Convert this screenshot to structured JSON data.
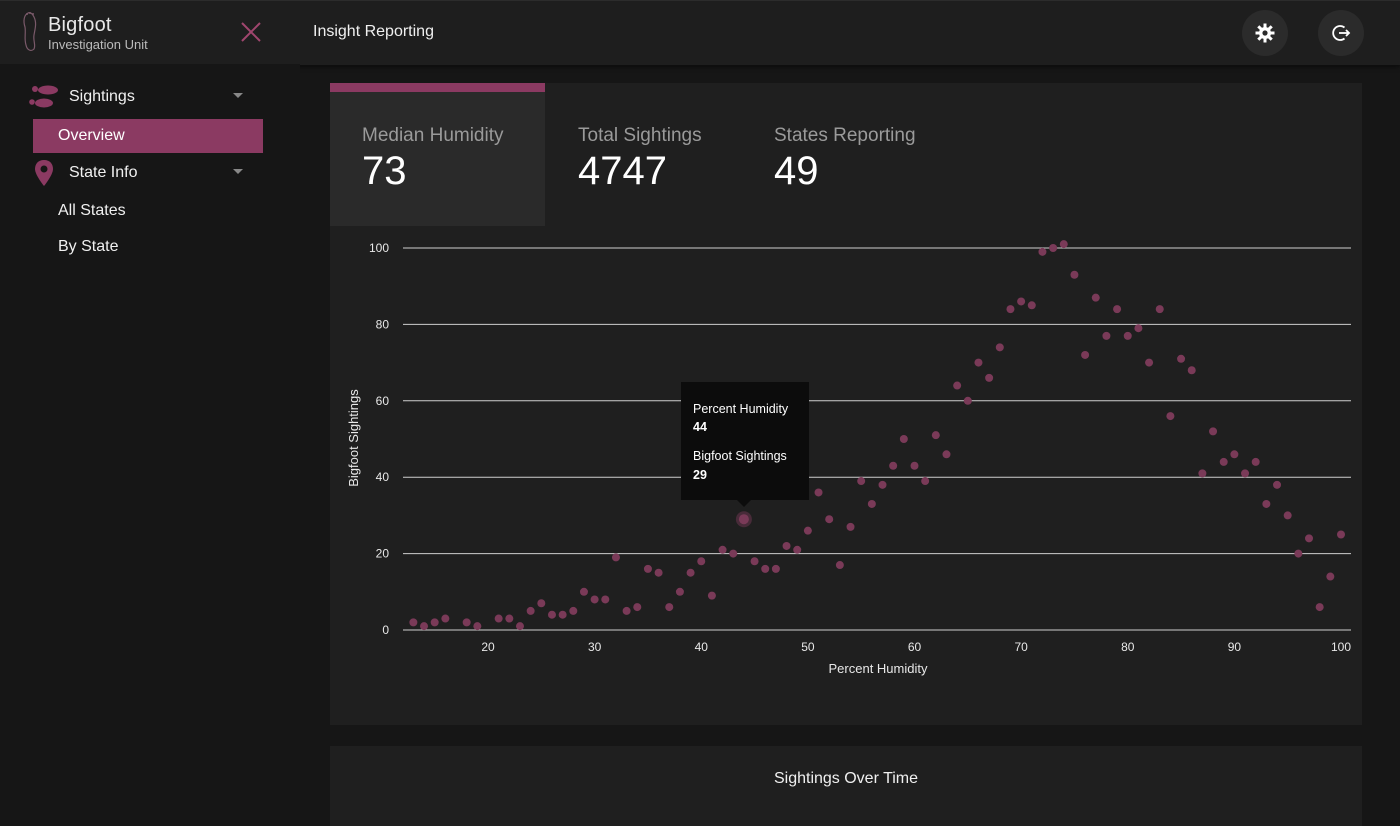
{
  "header": {
    "brand_title": "Bigfoot",
    "brand_subtitle": "Investigation Unit",
    "page_title": "Insight Reporting",
    "icons": [
      "bigfoot-logo-icon",
      "close-icon",
      "settings-gear-icon",
      "logout-icon"
    ]
  },
  "sidebar": {
    "groups": [
      {
        "label": "Sightings",
        "icon": "footprints-icon",
        "expanded": true
      },
      {
        "label": "State Info",
        "icon": "map-pin-icon",
        "expanded": true
      }
    ],
    "items": [
      "Overview",
      "All States",
      "By State"
    ],
    "active_item": "Overview"
  },
  "kpis": [
    {
      "label": "Median Humidity",
      "value": "73",
      "selected": true
    },
    {
      "label": "Total Sightings",
      "value": "4747",
      "selected": false
    },
    {
      "label": "States Reporting",
      "value": "49",
      "selected": false
    }
  ],
  "colors": {
    "accent": "#8b3a62",
    "point": "#7a3a58",
    "background": "#161616",
    "card": "#1f1f1f",
    "header": "#1e1e1e"
  },
  "chart_data": {
    "type": "scatter",
    "xlabel": "Percent Humidity",
    "ylabel": "Bigfoot Sightings",
    "xticks": [
      20,
      30,
      40,
      50,
      60,
      70,
      80,
      90,
      100
    ],
    "yticks": [
      0,
      20,
      40,
      60,
      80,
      100
    ],
    "xlim": [
      12,
      101
    ],
    "ylim": [
      0,
      100
    ],
    "grid": "horizontal",
    "points": [
      [
        13,
        2
      ],
      [
        14,
        1
      ],
      [
        15,
        2
      ],
      [
        16,
        3
      ],
      [
        18,
        2
      ],
      [
        19,
        1
      ],
      [
        21,
        3
      ],
      [
        22,
        3
      ],
      [
        23,
        1
      ],
      [
        24,
        5
      ],
      [
        25,
        7
      ],
      [
        26,
        4
      ],
      [
        27,
        4
      ],
      [
        28,
        5
      ],
      [
        29,
        10
      ],
      [
        30,
        8
      ],
      [
        31,
        8
      ],
      [
        32,
        19
      ],
      [
        33,
        5
      ],
      [
        34,
        6
      ],
      [
        35,
        16
      ],
      [
        36,
        15
      ],
      [
        37,
        6
      ],
      [
        38,
        10
      ],
      [
        39,
        15
      ],
      [
        40,
        18
      ],
      [
        41,
        9
      ],
      [
        42,
        21
      ],
      [
        43,
        20
      ],
      [
        44,
        29
      ],
      [
        45,
        18
      ],
      [
        46,
        16
      ],
      [
        47,
        16
      ],
      [
        48,
        22
      ],
      [
        49,
        21
      ],
      [
        50,
        26
      ],
      [
        51,
        36
      ],
      [
        52,
        29
      ],
      [
        53,
        17
      ],
      [
        54,
        27
      ],
      [
        55,
        39
      ],
      [
        56,
        33
      ],
      [
        57,
        38
      ],
      [
        58,
        43
      ],
      [
        59,
        50
      ],
      [
        60,
        43
      ],
      [
        61,
        39
      ],
      [
        62,
        51
      ],
      [
        63,
        46
      ],
      [
        64,
        64
      ],
      [
        65,
        60
      ],
      [
        66,
        70
      ],
      [
        67,
        66
      ],
      [
        68,
        74
      ],
      [
        69,
        84
      ],
      [
        70,
        86
      ],
      [
        71,
        85
      ],
      [
        72,
        99
      ],
      [
        73,
        100
      ],
      [
        74,
        101
      ],
      [
        75,
        93
      ],
      [
        76,
        72
      ],
      [
        77,
        87
      ],
      [
        78,
        77
      ],
      [
        79,
        84
      ],
      [
        80,
        77
      ],
      [
        81,
        79
      ],
      [
        82,
        70
      ],
      [
        83,
        84
      ],
      [
        84,
        56
      ],
      [
        85,
        71
      ],
      [
        86,
        68
      ],
      [
        87,
        41
      ],
      [
        88,
        52
      ],
      [
        89,
        44
      ],
      [
        90,
        46
      ],
      [
        91,
        41
      ],
      [
        92,
        44
      ],
      [
        93,
        33
      ],
      [
        94,
        38
      ],
      [
        95,
        30
      ],
      [
        96,
        20
      ],
      [
        97,
        24
      ],
      [
        98,
        6
      ],
      [
        99,
        14
      ],
      [
        100,
        25
      ]
    ],
    "highlighted": {
      "x": 44,
      "y": 29
    }
  },
  "tooltip": {
    "x_label": "Percent Humidity",
    "x_value": "44",
    "y_label": "Bigfoot Sightings",
    "y_value": "29"
  },
  "second_card": {
    "title": "Sightings Over Time"
  }
}
